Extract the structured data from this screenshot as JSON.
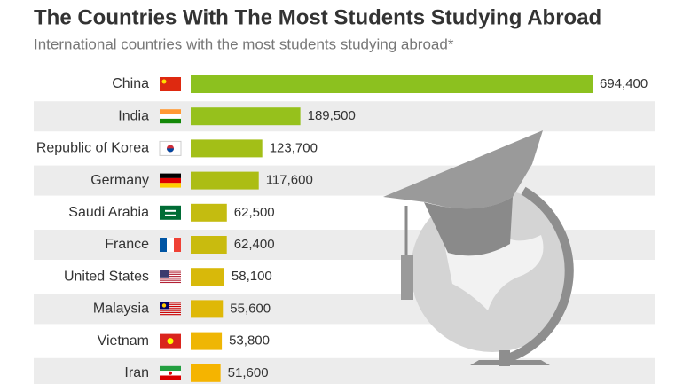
{
  "chart_data": {
    "type": "bar",
    "orientation": "horizontal",
    "title": "The Countries With The Most Students Studying Abroad",
    "subtitle": "International countries with the most students studying abroad*",
    "categories": [
      "China",
      "India",
      "Republic of Korea",
      "Germany",
      "Saudi Arabia",
      "France",
      "United States",
      "Malaysia",
      "Vietnam",
      "Iran"
    ],
    "values": [
      694400,
      189500,
      123700,
      117600,
      62500,
      62400,
      58100,
      55600,
      53800,
      51600
    ],
    "value_labels": [
      "694,400",
      "189,500",
      "123,700",
      "117,600",
      "62,500",
      "62,400",
      "58,100",
      "55,600",
      "53,800",
      "51,600"
    ],
    "colors": [
      "#8cc11f",
      "#96c11c",
      "#a3bf17",
      "#acbd14",
      "#c4bc10",
      "#c9bb0e",
      "#d8b90a",
      "#dfb807",
      "#efb604",
      "#f5b400"
    ]
  }
}
